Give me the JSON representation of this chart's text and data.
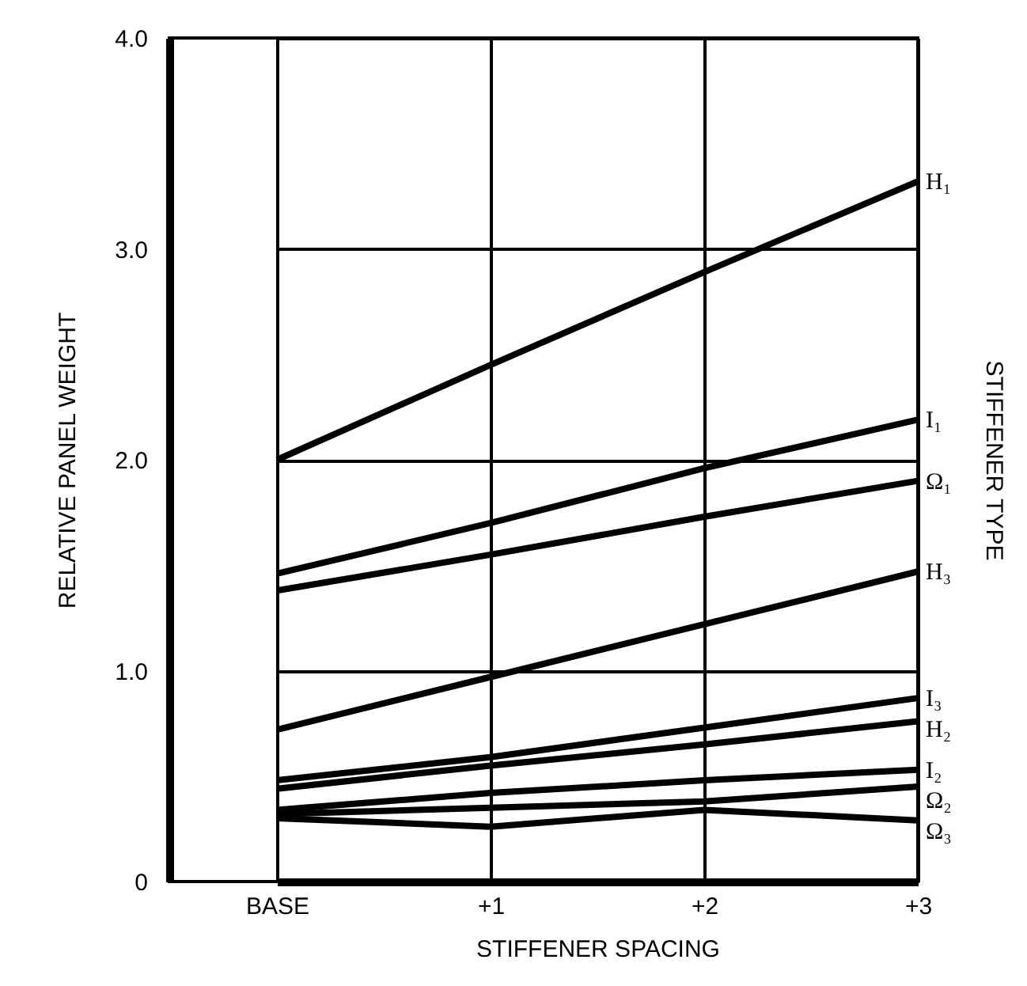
{
  "chart_data": {
    "type": "line",
    "xlabel": "STIFFENER SPACING",
    "ylabel": "RELATIVE PANEL WEIGHT",
    "legend_title": "STIFFENER TYPE",
    "categories": [
      "BASE",
      "+1",
      "+2",
      "+3"
    ],
    "series": [
      {
        "name": "H₁",
        "color": "#000000",
        "values": [
          2.0,
          2.45,
          2.89,
          3.32
        ]
      },
      {
        "name": "I₁",
        "color": "#000000",
        "values": [
          1.46,
          1.7,
          1.96,
          2.19
        ]
      },
      {
        "name": "Ω₁",
        "color": "#000000",
        "values": [
          1.38,
          1.55,
          1.73,
          1.9
        ]
      },
      {
        "name": "H₃",
        "color": "#000000",
        "values": [
          0.72,
          0.97,
          1.22,
          1.47
        ]
      },
      {
        "name": "I₃",
        "color": "#000000",
        "values": [
          0.48,
          0.59,
          0.73,
          0.87
        ]
      },
      {
        "name": "H₂",
        "color": "#000000",
        "values": [
          0.44,
          0.55,
          0.65,
          0.76
        ]
      },
      {
        "name": "I₂",
        "color": "#000000",
        "values": [
          0.34,
          0.42,
          0.48,
          0.53
        ]
      },
      {
        "name": "Ω₂",
        "color": "#000000",
        "values": [
          0.32,
          0.35,
          0.38,
          0.45
        ]
      },
      {
        "name": "Ω₃",
        "color": "#000000",
        "values": [
          0.3,
          0.26,
          0.34,
          0.29
        ]
      }
    ],
    "ylim": [
      0,
      4
    ],
    "yticks": [
      0,
      {
        "value": 1,
        "label": "1.0"
      },
      {
        "value": 2,
        "label": "2.0"
      },
      {
        "value": 3,
        "label": "3.0"
      },
      {
        "value": 4,
        "label": "4.0"
      }
    ],
    "grid": true,
    "legend": false,
    "marker": "none",
    "line_style": "solid"
  }
}
